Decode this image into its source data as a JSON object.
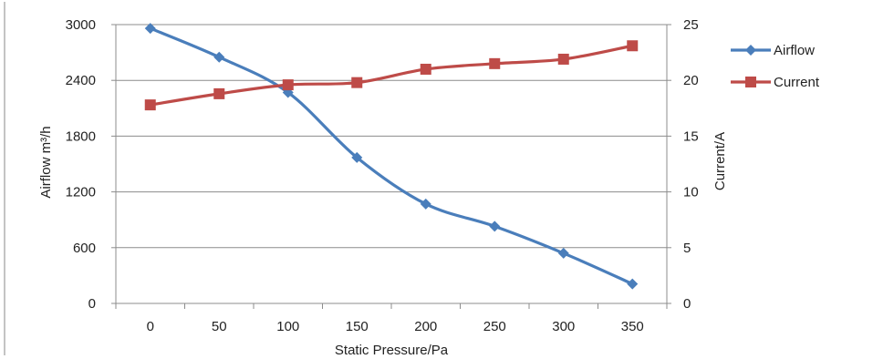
{
  "chart_data": {
    "type": "line",
    "title": "",
    "x": [
      0,
      50,
      100,
      150,
      200,
      250,
      300,
      350
    ],
    "xlabel": "Static Pressure/Pa",
    "ylabel": "Airflow  m³/h",
    "y2label": "Current/A",
    "ylim": [
      0,
      3000
    ],
    "y2lim": [
      0,
      25
    ],
    "yticks": [
      "0",
      "600",
      "1200",
      "1800",
      "2400",
      "3000"
    ],
    "y2ticks": [
      "0",
      "5",
      "10",
      "15",
      "20",
      "25"
    ],
    "xticks": [
      "0",
      "50",
      "100",
      "150",
      "200",
      "250",
      "300",
      "350"
    ],
    "grid": "horizontal",
    "legend_position": "right",
    "series": [
      {
        "name": "Airflow",
        "axis": "left",
        "color": "#4A7EBB",
        "marker": "diamond",
        "values": [
          2960,
          2650,
          2270,
          1570,
          1070,
          830,
          540,
          210
        ]
      },
      {
        "name": "Current",
        "axis": "right",
        "color": "#BE4B48",
        "marker": "square",
        "values": [
          17.8,
          18.8,
          19.6,
          19.8,
          21.0,
          21.5,
          21.9,
          23.1
        ]
      }
    ]
  }
}
